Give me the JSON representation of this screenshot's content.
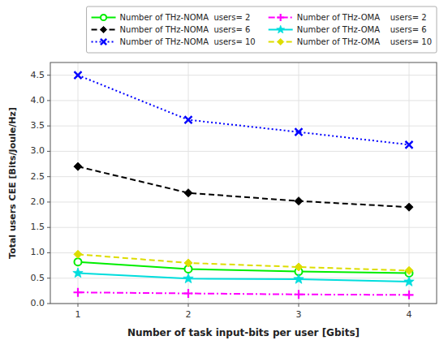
{
  "chart_data": {
    "type": "line",
    "x": [
      1,
      2,
      3,
      4
    ],
    "series": [
      {
        "name": "Number of THz-NOMA  users= 2",
        "color": "#00ee00",
        "marker": "circle",
        "line_style": "solid",
        "values": [
          0.82,
          0.68,
          0.63,
          0.6
        ]
      },
      {
        "name": "Number of THz-NOMA  users= 6",
        "color": "#000000",
        "marker": "diamond",
        "line_style": "dashed",
        "values": [
          2.7,
          2.18,
          2.02,
          1.9
        ]
      },
      {
        "name": "Number of THz-NOMA  users= 10",
        "color": "#0000ff",
        "marker": "x",
        "line_style": "dotted",
        "values": [
          4.5,
          3.62,
          3.38,
          3.13
        ]
      },
      {
        "name": "Number of THz-OMA    users= 2",
        "color": "#ff00ff",
        "marker": "plus",
        "line_style": "dashdot",
        "values": [
          0.22,
          0.2,
          0.18,
          0.17
        ]
      },
      {
        "name": "Number of THz-OMA    users= 6",
        "color": "#00dddd",
        "marker": "star",
        "line_style": "solid",
        "values": [
          0.6,
          0.49,
          0.48,
          0.43
        ]
      },
      {
        "name": "Number of THz-OMA    users= 10",
        "color": "#dddd00",
        "marker": "diamond",
        "line_style": "dashed",
        "values": [
          0.97,
          0.8,
          0.72,
          0.65
        ]
      }
    ],
    "xlabel": "Number of task input-bits per user [Gbits]",
    "ylabel": "Total users CEE [Bits/Joule/Hz]",
    "xlim": [
      0.75,
      4.25
    ],
    "ylim": [
      0,
      4.75
    ],
    "xticks": [
      1,
      2,
      3,
      4
    ],
    "yticks": [
      {
        "value": 0,
        "label": "0.0"
      },
      0.5,
      {
        "value": 1.0,
        "label": "1.0"
      },
      1.5,
      {
        "value": 2.0,
        "label": "2.0"
      },
      2.5,
      {
        "value": 3.0,
        "label": "3.0"
      },
      3.5,
      {
        "value": 4.0,
        "label": "4.0"
      },
      4.5
    ],
    "grid": true,
    "legend": "upper right"
  }
}
